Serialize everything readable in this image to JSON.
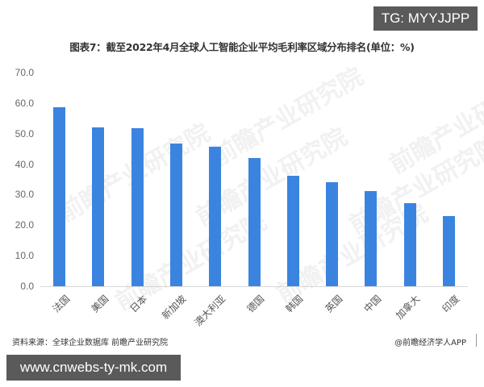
{
  "badge_top": "TG: MYYJJPP",
  "badge_bottom": "www.cnwebs-ty-mk.com",
  "source_text": "资料来源：全球企业数据库 前瞻产业研究院",
  "credit_text": "@前瞻经济学人APP",
  "watermark_text": "前瞻产业研究院",
  "colors": {
    "bar": "#3a84e0",
    "axis": "#d9d9d9",
    "badge_bg": "#5a5a5a"
  },
  "chart_data": {
    "type": "bar",
    "title": "图表7：截至2022年4月全球人工智能企业平均毛利率区域分布排名(单位：%)",
    "xlabel": "",
    "ylabel": "",
    "ylim": [
      0,
      70
    ],
    "yticks": [
      "0.0",
      "10.0",
      "20.0",
      "30.0",
      "40.0",
      "50.0",
      "60.0",
      "70.0"
    ],
    "grid": false,
    "legend": null,
    "categories": [
      "法国",
      "美国",
      "日本",
      "新加坡",
      "澳大利亚",
      "德国",
      "韩国",
      "英国",
      "中国",
      "加拿大",
      "印度"
    ],
    "values": [
      58.7,
      52.1,
      51.8,
      46.7,
      45.6,
      41.9,
      36.3,
      34.2,
      31.3,
      27.3,
      23.1
    ]
  }
}
